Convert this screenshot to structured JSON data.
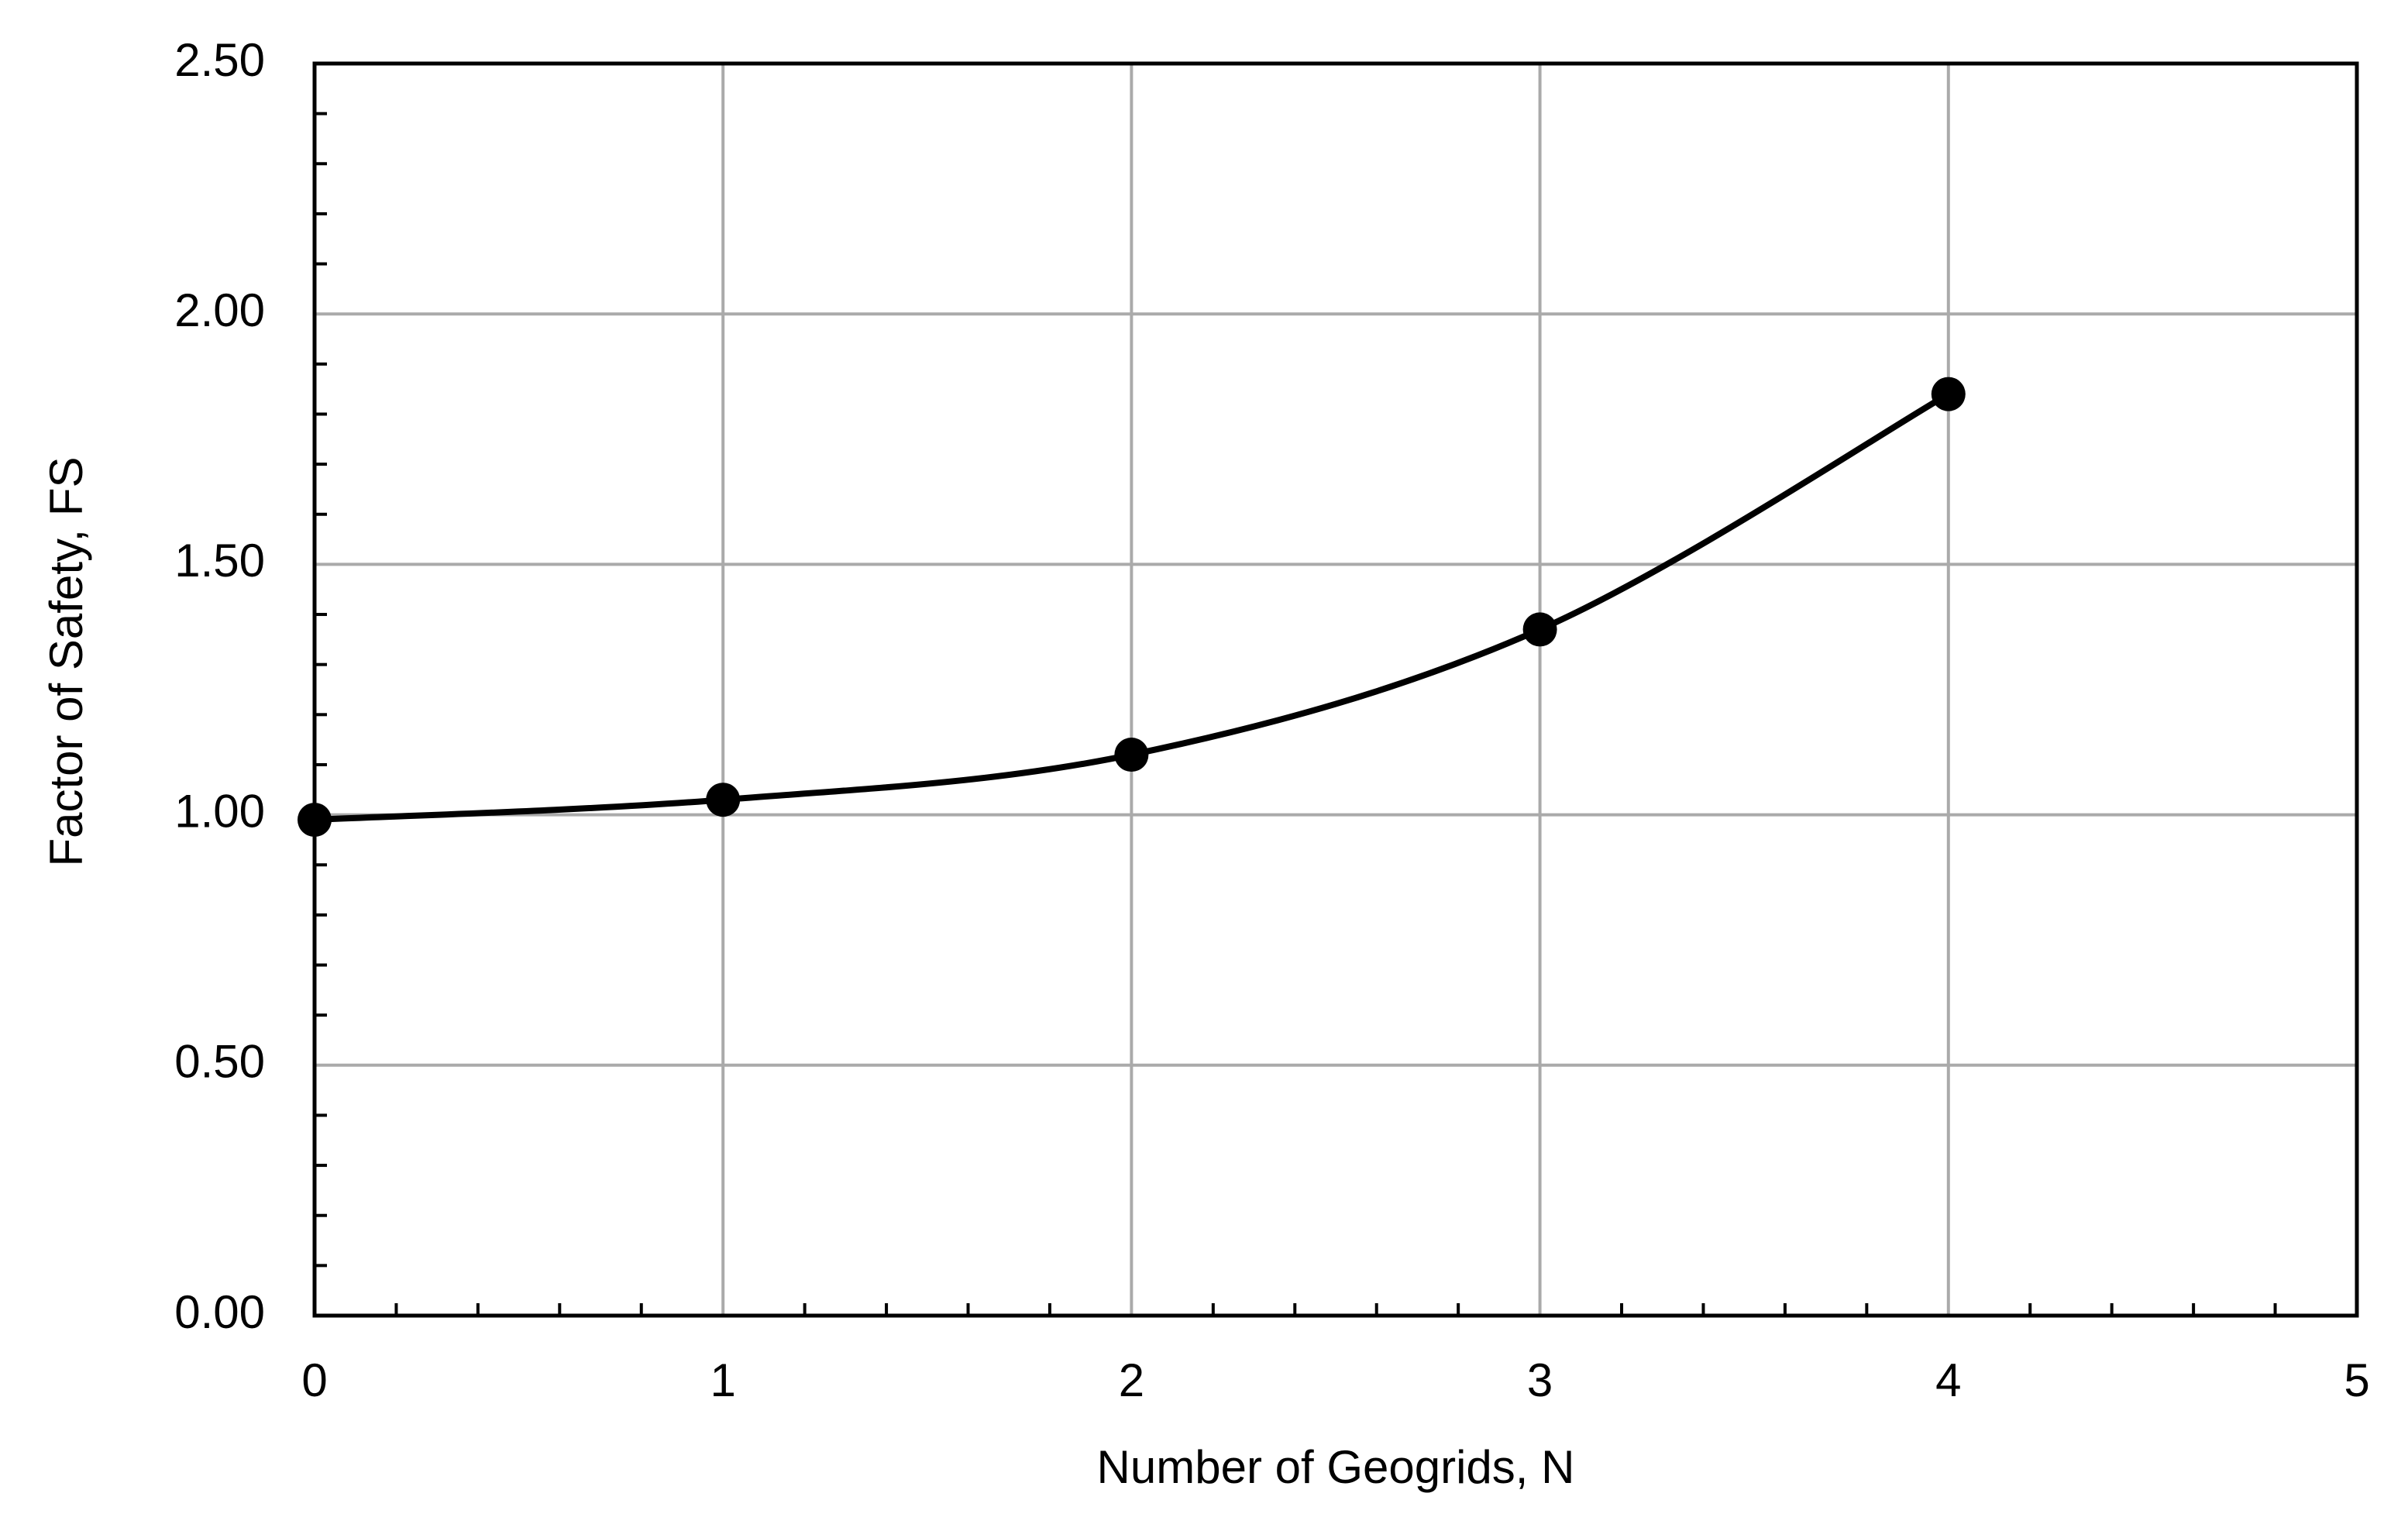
{
  "chart_data": {
    "type": "line",
    "xlabel": "Number of Geogrids, N",
    "ylabel": "Factor of Safety, FS",
    "x": [
      0,
      1,
      2,
      3,
      4
    ],
    "series": [
      {
        "name": "FS",
        "color": "#000000",
        "values": [
          0.99,
          1.03,
          1.12,
          1.37,
          1.84
        ]
      }
    ],
    "xlim": [
      0,
      5
    ],
    "xticks": [
      0,
      1,
      2,
      3,
      4,
      5
    ],
    "ylim": [
      0,
      2.5
    ],
    "yticks": [
      {
        "value": 0,
        "label": "0.00"
      },
      {
        "value": 0.5,
        "label": "0.50"
      },
      {
        "value": 1,
        "label": "1.00"
      },
      {
        "value": 1.5,
        "label": "1.50"
      },
      {
        "value": 2,
        "label": "2.00"
      },
      {
        "value": 2.5,
        "label": "2.50"
      }
    ],
    "grid": true,
    "smooth": true,
    "markers": true
  }
}
